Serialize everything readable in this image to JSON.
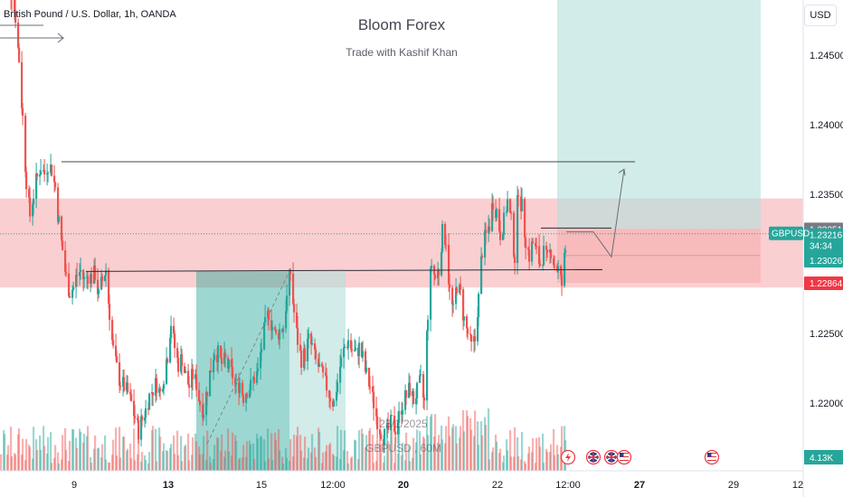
{
  "header": {
    "symbol_title": "British Pound / U.S. Dollar, 1h, OANDA",
    "currency_button": "USD"
  },
  "watermark": {
    "title": "Bloom Forex",
    "subtitle": "Trade with Kashif Khan",
    "snapshot_date": "23/1/2025",
    "snapshot_symbol": "GBPUSD , 60M"
  },
  "colors": {
    "up": "#26a69a",
    "down": "#ef5350",
    "zone": "#f8bfc2",
    "target_zone": "#b2dfdb",
    "stop_zone": "#f7b0b2",
    "symbol_badge": "#26a69a",
    "volume_badge": "#26a69a",
    "stop_badge": "#f23645",
    "top_badge": "#787b86"
  },
  "events": {
    "icons": [
      "lightning-icon",
      "uk-flag-icon",
      "uk-flag-icon",
      "us-flag-icon",
      "us-flag-icon"
    ]
  },
  "chart_data": {
    "type": "candlestick",
    "instrument": "GBPUSD",
    "y_range": [
      1.2174,
      1.2498
    ],
    "y_ticks": [
      {
        "label": "1.24500",
        "value": 1.245
      },
      {
        "label": "1.24000",
        "value": 1.24
      },
      {
        "label": "1.23500",
        "value": 1.235
      },
      {
        "label": "1.22500",
        "value": 1.225
      },
      {
        "label": "1.22000",
        "value": 1.22
      }
    ],
    "x_ticks": [
      {
        "label": "9",
        "bold": false
      },
      {
        "label": "13",
        "bold": true
      },
      {
        "label": "15",
        "bold": false
      },
      {
        "label": "12:00",
        "bold": false
      },
      {
        "label": "20",
        "bold": true
      },
      {
        "label": "22",
        "bold": false
      },
      {
        "label": "12:00",
        "bold": false
      },
      {
        "label": "27",
        "bold": true
      },
      {
        "label": "29",
        "bold": false
      },
      {
        "label": "12",
        "bold": false
      }
    ],
    "price_path": [
      [
        0,
        1.2505
      ],
      [
        4,
        1.251
      ],
      [
        8,
        1.2498
      ],
      [
        12,
        1.2495
      ],
      [
        16,
        1.2478
      ],
      [
        20,
        1.2447
      ],
      [
        24,
        1.2405
      ],
      [
        28,
        1.236
      ],
      [
        32,
        1.2335
      ],
      [
        36,
        1.235
      ],
      [
        40,
        1.2362
      ],
      [
        44,
        1.237
      ],
      [
        48,
        1.2365
      ],
      [
        52,
        1.2372
      ],
      [
        56,
        1.2368
      ],
      [
        60,
        1.2355
      ],
      [
        64,
        1.233
      ],
      [
        68,
        1.231
      ],
      [
        72,
        1.229
      ],
      [
        76,
        1.228
      ],
      [
        80,
        1.2283
      ],
      [
        84,
        1.2292
      ],
      [
        88,
        1.2295
      ],
      [
        92,
        1.2288
      ],
      [
        96,
        1.2292
      ],
      [
        100,
        1.229
      ],
      [
        104,
        1.2293
      ],
      [
        108,
        1.2277
      ],
      [
        112,
        1.2288
      ],
      [
        116,
        1.2296
      ],
      [
        120,
        1.2265
      ],
      [
        124,
        1.2238
      ],
      [
        128,
        1.2225
      ],
      [
        132,
        1.2215
      ],
      [
        136,
        1.2212
      ],
      [
        140,
        1.2207
      ],
      [
        144,
        1.22
      ],
      [
        148,
        1.219
      ],
      [
        152,
        1.218
      ],
      [
        156,
        1.2188
      ],
      [
        160,
        1.2195
      ],
      [
        164,
        1.2205
      ],
      [
        168,
        1.221
      ],
      [
        172,
        1.2214
      ],
      [
        176,
        1.2207
      ],
      [
        180,
        1.222
      ],
      [
        184,
        1.2235
      ],
      [
        188,
        1.2258
      ],
      [
        192,
        1.224
      ],
      [
        196,
        1.2228
      ],
      [
        200,
        1.2232
      ],
      [
        204,
        1.222
      ],
      [
        208,
        1.2212
      ],
      [
        212,
        1.222
      ],
      [
        216,
        1.2214
      ],
      [
        220,
        1.22
      ],
      [
        224,
        1.2195
      ],
      [
        228,
        1.221
      ],
      [
        232,
        1.2225
      ],
      [
        236,
        1.2238
      ],
      [
        240,
        1.2235
      ],
      [
        244,
        1.2228
      ],
      [
        248,
        1.223
      ],
      [
        252,
        1.2225
      ],
      [
        256,
        1.222
      ],
      [
        260,
        1.221
      ],
      [
        264,
        1.2215
      ],
      [
        268,
        1.2205
      ],
      [
        272,
        1.221
      ],
      [
        276,
        1.2212
      ],
      [
        280,
        1.2218
      ],
      [
        284,
        1.2222
      ],
      [
        288,
        1.224
      ],
      [
        292,
        1.2255
      ],
      [
        296,
        1.2265
      ],
      [
        300,
        1.2255
      ],
      [
        304,
        1.2248
      ],
      [
        308,
        1.2252
      ],
      [
        312,
        1.2255
      ],
      [
        316,
        1.2275
      ],
      [
        320,
        1.2294
      ],
      [
        324,
        1.2265
      ],
      [
        328,
        1.2245
      ],
      [
        332,
        1.2232
      ],
      [
        336,
        1.2235
      ],
      [
        340,
        1.2245
      ],
      [
        344,
        1.224
      ],
      [
        348,
        1.223
      ],
      [
        352,
        1.2225
      ],
      [
        356,
        1.2218
      ],
      [
        360,
        1.2212
      ],
      [
        364,
        1.2205
      ],
      [
        368,
        1.22
      ],
      [
        372,
        1.2215
      ],
      [
        376,
        1.223
      ],
      [
        380,
        1.224
      ],
      [
        384,
        1.2245
      ],
      [
        388,
        1.2238
      ],
      [
        392,
        1.2235
      ],
      [
        396,
        1.224
      ],
      [
        400,
        1.2232
      ],
      [
        404,
        1.222
      ],
      [
        408,
        1.2212
      ],
      [
        412,
        1.22
      ],
      [
        416,
        1.2188
      ],
      [
        420,
        1.218
      ],
      [
        424,
        1.2176
      ],
      [
        428,
        1.218
      ],
      [
        432,
        1.2186
      ],
      [
        436,
        1.2182
      ],
      [
        440,
        1.219
      ],
      [
        444,
        1.22
      ],
      [
        448,
        1.2205
      ],
      [
        452,
        1.221
      ],
      [
        456,
        1.2202
      ],
      [
        460,
        1.2208
      ],
      [
        464,
        1.2215
      ],
      [
        468,
        1.22
      ],
      [
        472,
        1.2265
      ],
      [
        476,
        1.23
      ],
      [
        480,
        1.229
      ],
      [
        484,
        1.2295
      ],
      [
        488,
        1.2322
      ],
      [
        492,
        1.2318
      ],
      [
        496,
        1.228
      ],
      [
        500,
        1.2265
      ],
      [
        504,
        1.2285
      ],
      [
        508,
        1.2278
      ],
      [
        512,
        1.226
      ],
      [
        516,
        1.225
      ],
      [
        520,
        1.224
      ],
      [
        524,
        1.2245
      ],
      [
        528,
        1.2275
      ],
      [
        532,
        1.231
      ],
      [
        536,
        1.232
      ],
      [
        540,
        1.2328
      ],
      [
        544,
        1.2345
      ],
      [
        548,
        1.2338
      ],
      [
        552,
        1.2322
      ],
      [
        556,
        1.233
      ],
      [
        560,
        1.2345
      ],
      [
        564,
        1.233
      ],
      [
        568,
        1.2305
      ],
      [
        572,
        1.2355
      ],
      [
        576,
        1.234
      ],
      [
        580,
        1.2318
      ],
      [
        584,
        1.2306
      ],
      [
        588,
        1.2315
      ],
      [
        592,
        1.2308
      ],
      [
        596,
        1.23
      ],
      [
        600,
        1.2308
      ],
      [
        604,
        1.2302
      ],
      [
        608,
        1.231
      ],
      [
        612,
        1.23
      ],
      [
        616,
        1.2296
      ],
      [
        620,
        1.2285
      ],
      [
        624,
        1.231
      ],
      [
        626,
        1.2322
      ]
    ],
    "key_level_top": {
      "value": 1.23734,
      "from": 68,
      "to": 702
    },
    "neckline": {
      "value": 1.22946,
      "from": 95,
      "to": 666
    },
    "supply_zone": {
      "from": 1.2347,
      "to": 1.2283
    },
    "forecast_path": [
      [
        626,
        1.2323
      ],
      [
        656,
        1.2323
      ],
      [
        676,
        1.2305
      ],
      [
        690,
        1.2368
      ]
    ],
    "long_position": {
      "entry": 1.23251,
      "target": 1.2498,
      "stop": 1.22864,
      "x_from": 616,
      "x_to": 841
    },
    "short_position": {
      "entry": 1.22946,
      "target": 1.2174,
      "x_left": 217,
      "x_mid": 320,
      "x_right": 382
    },
    "badges": {
      "top": "1.23251",
      "symbol": "GBPUSD",
      "price": "1.23216",
      "countdown": "34:34",
      "level": "1.23026",
      "stop": "1.22864",
      "volume": "4.13K"
    }
  }
}
